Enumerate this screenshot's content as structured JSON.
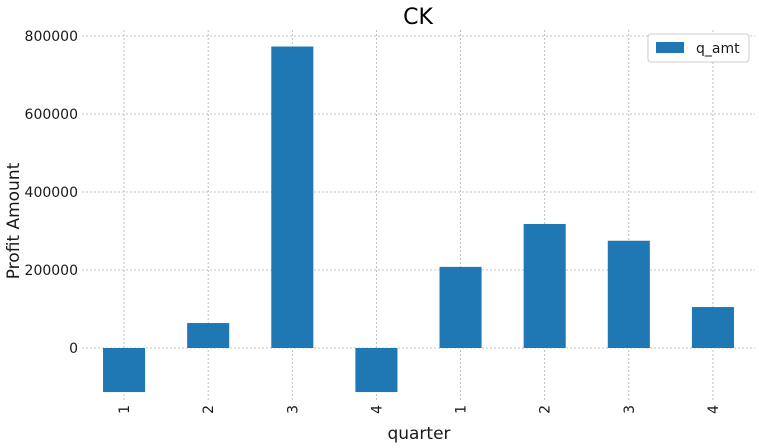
{
  "chart_data": {
    "type": "bar",
    "title": "CK",
    "xlabel": "quarter",
    "ylabel": "Profit Amount",
    "categories": [
      "1",
      "2",
      "3",
      "4",
      "1",
      "2",
      "3",
      "4"
    ],
    "series": [
      {
        "name": "q_amt",
        "values": [
          -113000,
          64000,
          773000,
          -113000,
          208000,
          318000,
          275000,
          105000
        ]
      }
    ],
    "ylim": [
      -150000,
      820000
    ],
    "yticks": [
      0,
      200000,
      400000,
      600000,
      800000
    ],
    "ytick_labels": [
      "0",
      "200000",
      "400000",
      "600000",
      "800000"
    ],
    "grid": true,
    "legend_position": "top-right",
    "colors": {
      "bar": "#1f77b4"
    }
  }
}
